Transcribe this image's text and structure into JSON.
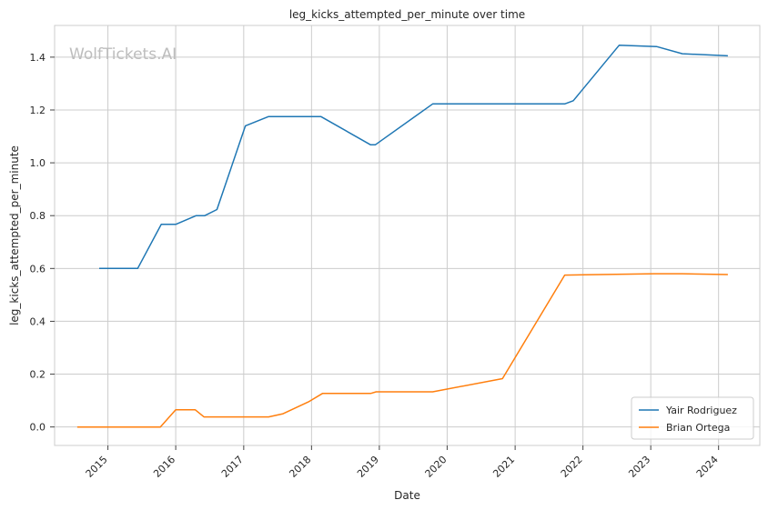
{
  "chart_data": {
    "type": "line",
    "title": "leg_kicks_attempted_per_minute over time",
    "xlabel": "Date",
    "ylabel": "leg_kicks_attempted_per_minute",
    "watermark": "WolfTickets.AI",
    "xlim": [
      "2014-03-20",
      "2024-08-10"
    ],
    "ylim": [
      -0.07,
      1.52
    ],
    "x_ticks": [
      "2015",
      "2016",
      "2017",
      "2018",
      "2019",
      "2020",
      "2021",
      "2022",
      "2023",
      "2024"
    ],
    "y_ticks": [
      0.0,
      0.2,
      0.4,
      0.6,
      0.8,
      1.0,
      1.2,
      1.4
    ],
    "y_tick_labels": [
      "0.0",
      "0.2",
      "0.4",
      "0.6",
      "0.8",
      "1.0",
      "1.2",
      "1.4"
    ],
    "grid": true,
    "legend_position": "lower-right",
    "series": [
      {
        "name": "Yair Rodriguez",
        "color": "#1f77b4",
        "points": [
          [
            "2014-11-15",
            0.6
          ],
          [
            "2015-06-10",
            0.6
          ],
          [
            "2015-10-15",
            0.767
          ],
          [
            "2016-01-01",
            0.767
          ],
          [
            "2016-04-20",
            0.8
          ],
          [
            "2016-06-05",
            0.8
          ],
          [
            "2016-08-10",
            0.823
          ],
          [
            "2017-01-10",
            1.14
          ],
          [
            "2017-05-15",
            1.175
          ],
          [
            "2018-02-20",
            1.175
          ],
          [
            "2018-11-15",
            1.068
          ],
          [
            "2018-12-10",
            1.068
          ],
          [
            "2019-10-15",
            1.223
          ],
          [
            "2021-09-25",
            1.223
          ],
          [
            "2021-11-10",
            1.235
          ],
          [
            "2022-07-15",
            1.445
          ],
          [
            "2023-02-01",
            1.44
          ],
          [
            "2023-06-20",
            1.413
          ],
          [
            "2024-02-20",
            1.405
          ]
        ]
      },
      {
        "name": "Brian Ortega",
        "color": "#ff7f0e",
        "points": [
          [
            "2014-07-20",
            0.0
          ],
          [
            "2015-10-10",
            0.0
          ],
          [
            "2016-01-01",
            0.065
          ],
          [
            "2016-04-15",
            0.065
          ],
          [
            "2016-06-01",
            0.038
          ],
          [
            "2017-05-15",
            0.038
          ],
          [
            "2017-08-01",
            0.05
          ],
          [
            "2017-12-15",
            0.095
          ],
          [
            "2018-03-01",
            0.127
          ],
          [
            "2018-11-15",
            0.127
          ],
          [
            "2018-12-15",
            0.133
          ],
          [
            "2019-10-15",
            0.133
          ],
          [
            "2020-10-25",
            0.183
          ],
          [
            "2021-09-25",
            0.575
          ],
          [
            "2023-01-20",
            0.58
          ],
          [
            "2023-06-20",
            0.58
          ],
          [
            "2024-02-20",
            0.577
          ]
        ]
      }
    ]
  }
}
